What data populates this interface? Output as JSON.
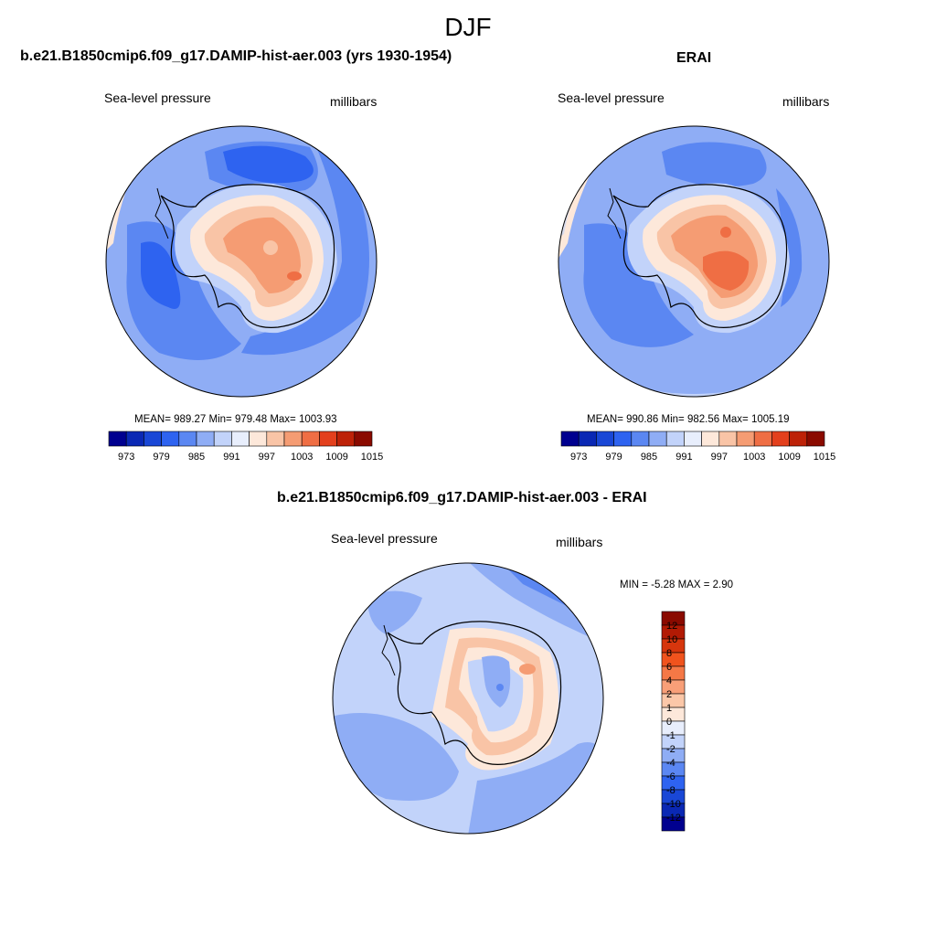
{
  "title": "DJF",
  "panels": [
    {
      "id": "model",
      "title": "b.e21.B1850cmip6.f09_g17.DAMIP-hist-aer.003 (yrs 1930-1954)",
      "field_label": "Sea-level pressure",
      "units": "millibars",
      "stats": "MEAN= 989.27  Min= 979.48  Max= 1003.93"
    },
    {
      "id": "erai",
      "title": "ERAI",
      "field_label": "Sea-level pressure",
      "units": "millibars",
      "stats": "MEAN= 990.86  Min= 982.56  Max= 1005.19"
    },
    {
      "id": "diff",
      "title": "b.e21.B1850cmip6.f09_g17.DAMIP-hist-aer.003 - ERAI",
      "field_label": "Sea-level pressure",
      "units": "millibars",
      "stats": "MIN =  -5.28 MAX =   2.90"
    }
  ],
  "colorbar_abs": {
    "labels": [
      "973",
      "979",
      "985",
      "991",
      "997",
      "1003",
      "1009",
      "1015"
    ],
    "colors": [
      "#00008f",
      "#0a28b4",
      "#1947d6",
      "#2e63f0",
      "#5b87f2",
      "#8fadf5",
      "#c2d3fa",
      "#e8eefc",
      "#fde8da",
      "#f9c4a6",
      "#f59c73",
      "#ef6e44",
      "#e3401d",
      "#bd2208",
      "#8a0a00"
    ]
  },
  "colorbar_diff": {
    "labels": [
      "12",
      "10",
      "8",
      "6",
      "4",
      "2",
      "1",
      "0",
      "-1",
      "-2",
      "-4",
      "-6",
      "-8",
      "-10",
      "-12"
    ],
    "colors": [
      "#8a0a00",
      "#b21a04",
      "#d6360d",
      "#f0531d",
      "#f57846",
      "#f89f78",
      "#fbc7a8",
      "#fde8da",
      "#e8eefc",
      "#c2d3fa",
      "#8fadf5",
      "#5b87f2",
      "#2e63f0",
      "#1947d6",
      "#0a28b4",
      "#00008f"
    ]
  }
}
